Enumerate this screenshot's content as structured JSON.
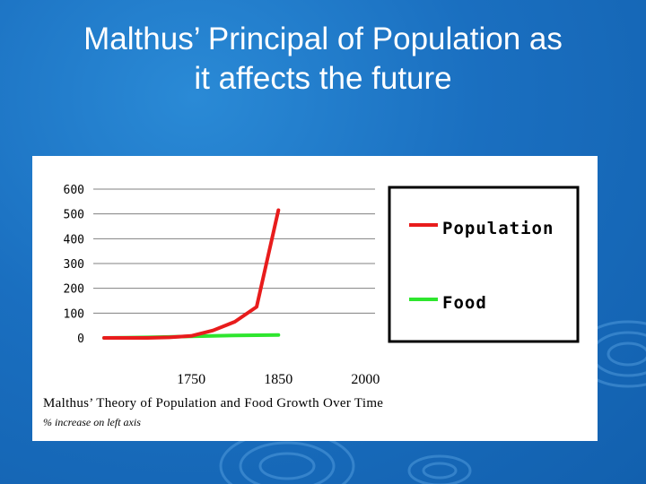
{
  "slide": {
    "title_line1": "Malthus’ Principal of Population as",
    "title_line2": "it affects the future"
  },
  "colors": {
    "background": "#1a6fc0",
    "population": "#e81c1c",
    "food": "#2ee62e",
    "panel": "#ffffff"
  },
  "chart_data": {
    "type": "line",
    "title": "",
    "caption": "Malthus’ Theory of Population and Food Growth Over Time",
    "note": "% increase on left axis",
    "ylim": [
      0,
      600
    ],
    "yticks": [
      0,
      100,
      200,
      300,
      400,
      500,
      600
    ],
    "xticks": [
      "1750",
      "1850",
      "2000"
    ],
    "x": [
      1650,
      1675,
      1700,
      1725,
      1750,
      1775,
      1800,
      1825,
      1850
    ],
    "grid": true,
    "legend_position": "right",
    "series": [
      {
        "name": "Population",
        "color": "#e81c1c",
        "values": [
          0,
          0,
          0,
          2,
          8,
          30,
          65,
          125,
          515
        ]
      },
      {
        "name": "Food",
        "color": "#2ee62e",
        "values": [
          0,
          1,
          2,
          4,
          6,
          8,
          10,
          11,
          12
        ]
      }
    ]
  }
}
